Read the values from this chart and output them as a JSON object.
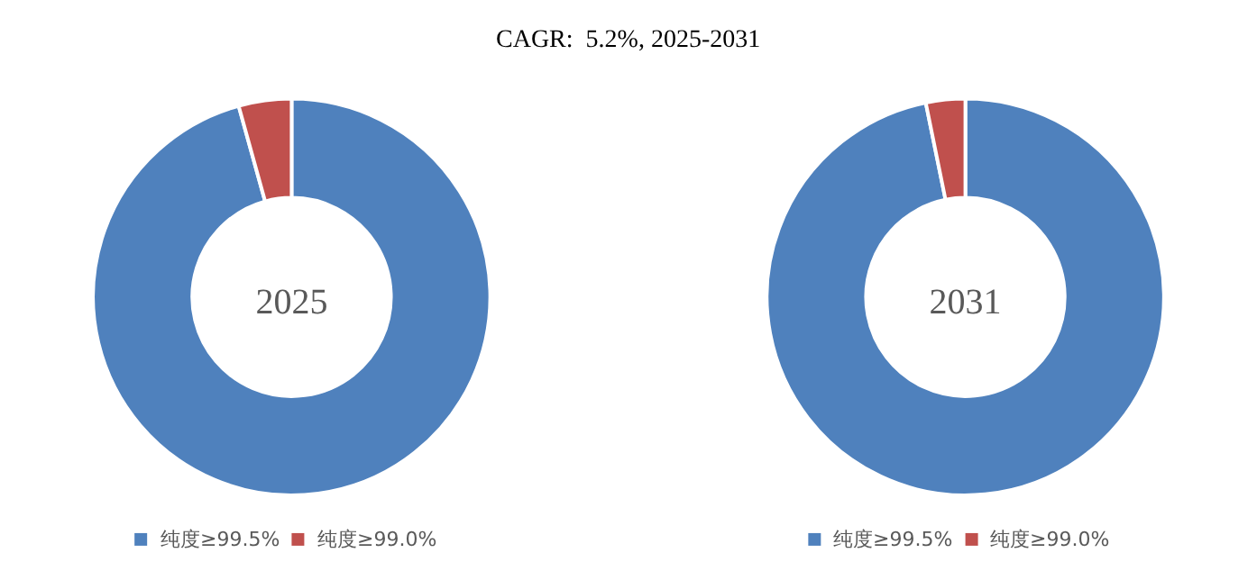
{
  "chart_data": [
    {
      "type": "donut",
      "title": "2025",
      "annotations": [
        "CAGR:  5.2%, 2025-2031"
      ],
      "categories": [
        "纯度≥99.5%",
        "纯度≥99.0%"
      ],
      "values": [
        95.7,
        4.3
      ],
      "colors": [
        "#4f81bd",
        "#c0504d"
      ],
      "legend": "bottom"
    },
    {
      "type": "donut",
      "title": "2031",
      "categories": [
        "纯度≥99.5%",
        "纯度≥99.0%"
      ],
      "values": [
        96.8,
        3.2
      ],
      "colors": [
        "#4f81bd",
        "#c0504d"
      ],
      "legend": "bottom"
    }
  ]
}
